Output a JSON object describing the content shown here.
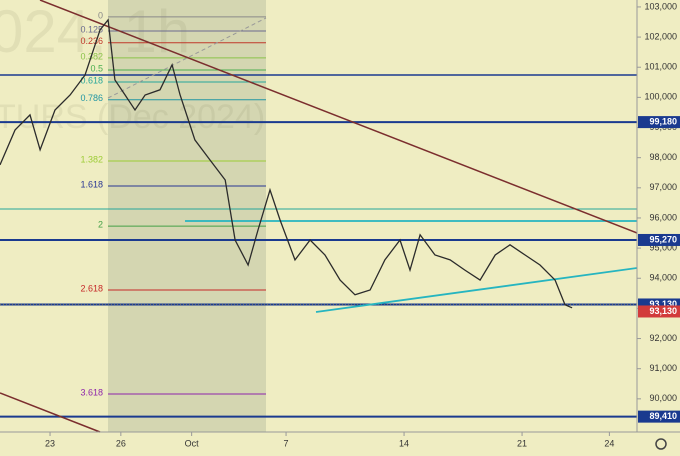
{
  "chart_data": {
    "type": "line",
    "watermark": [
      "024, 1h",
      "TURS (Dec 2024)"
    ],
    "x": [
      -2.12,
      -1.48,
      -0.85,
      -0.42,
      0.21,
      0.85,
      1.48,
      2.12,
      2.46,
      2.75,
      3.18,
      3.6,
      4.03,
      4.66,
      5.17,
      5.51,
      6.14,
      6.78,
      7.42,
      7.84,
      8.39,
      8.81,
      9.32,
      9.75,
      10.38,
      11.02,
      11.65,
      12.29,
      12.92,
      13.56,
      14.19,
      14.83,
      15.25,
      15.68,
      16.31,
      16.95,
      17.58,
      18.22,
      18.86,
      19.49,
      20.13,
      20.76,
      21.4,
      21.82,
      22.12
    ],
    "series": [
      {
        "color": "#2b2b2b",
        "values": [
          97760,
          98920,
          99420,
          98260,
          99580,
          100080,
          100740,
          102240,
          102570,
          100580,
          100080,
          99580,
          100080,
          100250,
          101080,
          100080,
          98590,
          97920,
          97260,
          95270,
          94440,
          95600,
          96930,
          95930,
          94610,
          95270,
          94770,
          93940,
          93450,
          93610,
          94610,
          95270,
          94270,
          95440,
          94770,
          94610,
          94270,
          93940,
          94770,
          95110,
          94770,
          94440,
          93940,
          93120,
          93020
        ]
      }
    ],
    "xlim": [
      -2.12,
      24.87
    ],
    "xticks": [
      {
        "value": 0,
        "label": "23"
      },
      {
        "value": 3,
        "label": "26"
      },
      {
        "value": 6,
        "label": "Oct"
      },
      {
        "value": 10,
        "label": "7"
      },
      {
        "value": 15,
        "label": "14"
      },
      {
        "value": 20,
        "label": "21"
      },
      {
        "value": 23.7,
        "label": "24"
      }
    ],
    "ylim": [
      88900,
      103230
    ],
    "yticks": [
      {
        "value": 103000,
        "label": "103,000"
      },
      {
        "value": 102000,
        "label": "102,000"
      },
      {
        "value": 101000,
        "label": "101,000"
      },
      {
        "value": 100000,
        "label": "100,000"
      },
      {
        "value": 99000,
        "label": "99,000"
      },
      {
        "value": 98000,
        "label": "98,000"
      },
      {
        "value": 97000,
        "label": "97,000"
      },
      {
        "value": 96000,
        "label": "96,000"
      },
      {
        "value": 95000,
        "label": "95,000"
      },
      {
        "value": 94000,
        "label": "94,000"
      },
      {
        "value": 93000,
        "label": "93,000"
      },
      {
        "value": 92000,
        "label": "92,000"
      },
      {
        "value": 91000,
        "label": "91,000"
      },
      {
        "value": 90000,
        "label": "90,000"
      }
    ],
    "levels": [
      {
        "value": 99180,
        "label": "99,180",
        "color": "#1a3a8f"
      },
      {
        "value": 95270,
        "label": "95,270",
        "color": "#1a3a8f"
      },
      {
        "value": 93130,
        "label": "93,130",
        "color": "#1a3a8f"
      },
      {
        "value": 93130,
        "label": "93,130",
        "color": "#d23b3b"
      },
      {
        "value": 89410,
        "label": "89,410",
        "color": "#1a3a8f"
      }
    ],
    "fib_levels": [
      {
        "ratio": 0,
        "price": 102670,
        "color": "#8a8a8a"
      },
      {
        "ratio": 0.125,
        "price": 102200,
        "color": "#6b6b8f"
      },
      {
        "ratio": 0.236,
        "price": 101810,
        "color": "#c0392b"
      },
      {
        "ratio": 0.382,
        "price": 101310,
        "color": "#8bc34a"
      },
      {
        "ratio": 0.5,
        "price": 100910,
        "color": "#4caf50"
      },
      {
        "ratio": 0.618,
        "price": 100510,
        "color": "#26a69a"
      },
      {
        "ratio": 0.786,
        "price": 99920,
        "color": "#2196a3"
      },
      {
        "ratio": 1.382,
        "price": 97890,
        "color": "#9ccc35"
      },
      {
        "ratio": 1.618,
        "price": 97060,
        "color": "#283593"
      },
      {
        "ratio": 2,
        "price": 95730,
        "color": "#43a047"
      },
      {
        "ratio": 2.618,
        "price": 93610,
        "color": "#c62828"
      },
      {
        "ratio": 3.618,
        "price": 90160,
        "color": "#8e24aa"
      }
    ]
  }
}
